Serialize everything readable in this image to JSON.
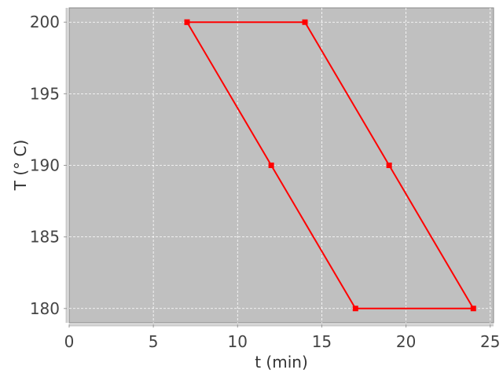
{
  "chart_data": {
    "type": "line",
    "title": "",
    "xlabel": "t (min)",
    "ylabel": "T (° C)",
    "xlim": [
      0,
      25.2
    ],
    "ylim": [
      179,
      201
    ],
    "xticks": [
      0,
      5,
      10,
      15,
      20,
      25
    ],
    "yticks": [
      180,
      185,
      190,
      195,
      200
    ],
    "grid": true,
    "background_color": "#c0c0c0",
    "series": [
      {
        "color": "#ff0000",
        "marker": "square",
        "x": [
          7,
          14,
          19,
          24,
          17,
          12,
          7
        ],
        "y": [
          200,
          200,
          190,
          180,
          180,
          190,
          200
        ]
      }
    ]
  }
}
